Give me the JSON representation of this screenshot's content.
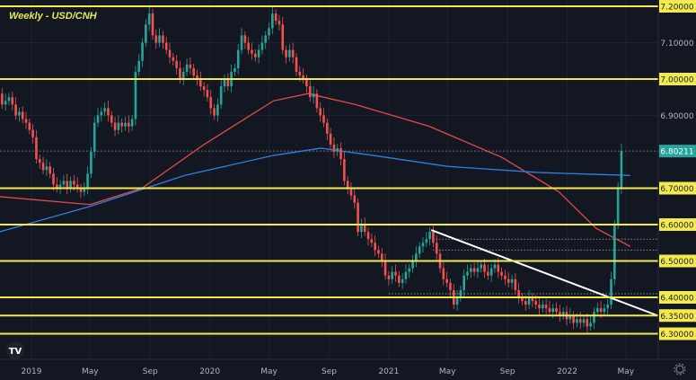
{
  "chart_data": {
    "type": "candlestick",
    "title": "Weekly - USD/CNH",
    "interval": "weekly",
    "start_week": "2018-10-05",
    "closes": [
      6.92,
      6.94,
      6.95,
      6.96,
      6.93,
      6.94,
      6.95,
      6.93,
      6.9,
      6.91,
      6.89,
      6.88,
      6.86,
      6.84,
      6.78,
      6.77,
      6.75,
      6.76,
      6.74,
      6.71,
      6.7,
      6.71,
      6.72,
      6.7,
      6.72,
      6.71,
      6.7,
      6.69,
      6.7,
      6.74,
      6.8,
      6.88,
      6.9,
      6.91,
      6.92,
      6.9,
      6.88,
      6.86,
      6.88,
      6.87,
      6.88,
      6.87,
      6.89,
      7.02,
      7.05,
      7.1,
      7.15,
      7.18,
      7.12,
      7.1,
      7.12,
      7.1,
      7.08,
      7.06,
      7.05,
      7.03,
      7.0,
      7.02,
      7.04,
      7.03,
      7.01,
      7.0,
      6.98,
      6.97,
      6.95,
      6.92,
      6.9,
      6.93,
      6.98,
      7.0,
      6.98,
      7.02,
      7.03,
      7.08,
      7.12,
      7.1,
      7.08,
      7.07,
      7.06,
      7.08,
      7.1,
      7.12,
      7.14,
      7.18,
      7.16,
      7.15,
      7.08,
      7.06,
      7.08,
      7.06,
      7.02,
      7.01,
      7.0,
      6.98,
      6.95,
      6.96,
      6.92,
      6.9,
      6.88,
      6.85,
      6.82,
      6.8,
      6.81,
      6.78,
      6.72,
      6.7,
      6.68,
      6.66,
      6.58,
      6.6,
      6.58,
      6.56,
      6.55,
      6.53,
      6.52,
      6.5,
      6.46,
      6.45,
      6.47,
      6.46,
      6.44,
      6.45,
      6.47,
      6.48,
      6.5,
      6.52,
      6.54,
      6.55,
      6.56,
      6.58,
      6.55,
      6.52,
      6.48,
      6.45,
      6.44,
      6.42,
      6.38,
      6.4,
      6.42,
      6.46,
      6.47,
      6.48,
      6.47,
      6.48,
      6.49,
      6.47,
      6.46,
      6.48,
      6.49,
      6.47,
      6.46,
      6.45,
      6.44,
      6.45,
      6.42,
      6.4,
      6.39,
      6.38,
      6.4,
      6.39,
      6.38,
      6.37,
      6.38,
      6.37,
      6.36,
      6.37,
      6.36,
      6.35,
      6.36,
      6.34,
      6.35,
      6.33,
      6.34,
      6.33,
      6.34,
      6.32,
      6.33,
      6.36,
      6.37,
      6.36,
      6.37,
      6.38,
      6.45,
      6.6,
      6.7,
      6.80211
    ],
    "moving_averages": [
      {
        "color": "#e04b4b",
        "points": [
          [
            "2018-10-01",
            6.68
          ],
          [
            "2019-05-01",
            6.655
          ],
          [
            "2019-08-15",
            6.7
          ],
          [
            "2019-12-20",
            6.82
          ],
          [
            "2020-05-10",
            6.94
          ],
          [
            "2020-07-20",
            6.96
          ],
          [
            "2020-10-25",
            6.93
          ],
          [
            "2021-03-25",
            6.87
          ],
          [
            "2021-08-20",
            6.785
          ],
          [
            "2021-12-15",
            6.69
          ],
          [
            "2022-03-01",
            6.59
          ],
          [
            "2022-05-10",
            6.54
          ]
        ]
      },
      {
        "color": "#2f7fe0",
        "points": [
          [
            "2018-10-01",
            6.57
          ],
          [
            "2019-05-01",
            6.65
          ],
          [
            "2019-11-10",
            6.735
          ],
          [
            "2020-05-10",
            6.79
          ],
          [
            "2020-08-15",
            6.81
          ],
          [
            "2020-12-01",
            6.79
          ],
          [
            "2021-05-01",
            6.76
          ],
          [
            "2021-11-05",
            6.743
          ],
          [
            "2022-05-10",
            6.735
          ]
        ]
      }
    ],
    "trendline": {
      "color": "#ffffff",
      "points": [
        [
          "2021-03-29",
          6.585
        ],
        [
          "2022-07-05",
          6.35
        ]
      ]
    },
    "support_resistance": [
      7.2,
      7.0,
      6.7,
      6.6,
      6.5,
      6.4,
      6.35,
      6.3
    ],
    "dotted_levels": [
      {
        "price": 6.56,
        "from": "2021-04-01"
      },
      {
        "price": 6.53,
        "from": "2021-04-01"
      },
      {
        "price": 6.41,
        "from": "2021-01-01"
      }
    ],
    "ylim": [
      6.27,
      7.22
    ],
    "y_tick_labels": [
      {
        "price": 7.2,
        "label": "7.20000",
        "highlight": true
      },
      {
        "price": 7.1,
        "label": "7.10000",
        "highlight": false
      },
      {
        "price": 7.0,
        "label": "7.00000",
        "highlight": true
      },
      {
        "price": 6.9,
        "label": "6.90000",
        "highlight": false
      },
      {
        "price": 6.7,
        "label": "6.70000",
        "highlight": true
      },
      {
        "price": 6.6,
        "label": "6.60000",
        "highlight": true
      },
      {
        "price": 6.5,
        "label": "6.50000",
        "highlight": true
      },
      {
        "price": 6.4,
        "label": "6.40000",
        "highlight": true
      },
      {
        "price": 6.35,
        "label": "6.35000",
        "highlight": true
      },
      {
        "price": 6.3,
        "label": "6.30000",
        "highlight": true
      }
    ],
    "last_price": {
      "price": 6.80211,
      "label": "6.80211"
    },
    "x_tick_labels": [
      {
        "date": "2019-01-01",
        "label": "2019"
      },
      {
        "date": "2019-05-01",
        "label": "May"
      },
      {
        "date": "2019-09-01",
        "label": "Sep"
      },
      {
        "date": "2020-01-01",
        "label": "2020"
      },
      {
        "date": "2020-05-01",
        "label": "May"
      },
      {
        "date": "2020-09-01",
        "label": "Sep"
      },
      {
        "date": "2021-01-01",
        "label": "2021"
      },
      {
        "date": "2021-05-01",
        "label": "May"
      },
      {
        "date": "2021-09-01",
        "label": "Sep"
      },
      {
        "date": "2022-01-01",
        "label": "2022"
      },
      {
        "date": "2022-05-01",
        "label": "May"
      }
    ],
    "colors": {
      "up": "#26a69a",
      "down": "#ef5350",
      "levels": "#f2ea4f",
      "background": "#131722",
      "last_price_bg": "#26a69a"
    }
  },
  "branding": {
    "logo": "TV"
  },
  "icons": {
    "settings": "gear-icon"
  }
}
